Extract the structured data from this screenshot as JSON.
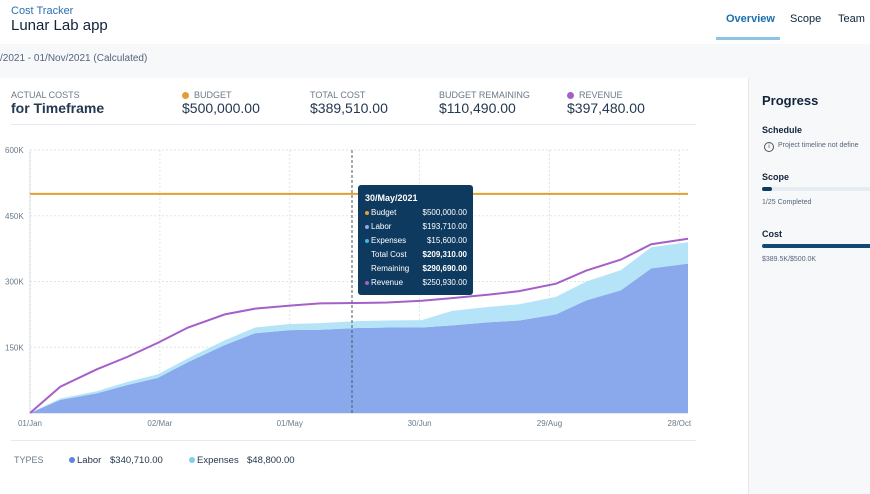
{
  "header": {
    "app": "Cost Tracker",
    "project": "Lunar Lab app",
    "tabs": [
      "Overview",
      "Scope",
      "Team"
    ]
  },
  "date_range": "/2021 - 01/Nov/2021 (Calculated)",
  "summary": {
    "label_top": "ACTUAL COSTS",
    "label_bottom": "for Timeframe",
    "items": [
      {
        "label": "BUDGET",
        "value": "$500,000.00"
      },
      {
        "label": "TOTAL COST",
        "value": "$389,510.00"
      },
      {
        "label": "BUDGET REMAINING",
        "value": "$110,490.00"
      },
      {
        "label": "REVENUE",
        "value": "$397,480.00"
      }
    ]
  },
  "chart_data": {
    "type": "area",
    "x": [
      "2021-01-01",
      "2021-01-15",
      "2021-02-01",
      "2021-02-15",
      "2021-03-01",
      "2021-03-15",
      "2021-04-01",
      "2021-04-15",
      "2021-05-01",
      "2021-05-15",
      "2021-06-01",
      "2021-06-15",
      "2021-07-01",
      "2021-07-15",
      "2021-08-01",
      "2021-08-15",
      "2021-09-01",
      "2021-09-15",
      "2021-10-01",
      "2021-10-15",
      "2021-11-01"
    ],
    "series": [
      {
        "name": "Labor",
        "color": "#8aa9ec",
        "values": [
          0,
          30000,
          45000,
          64000,
          80000,
          116000,
          155000,
          182000,
          189000,
          190000,
          194000,
          195000,
          195000,
          200000,
          207000,
          211000,
          225000,
          257000,
          280000,
          330000,
          340710
        ]
      },
      {
        "name": "Expenses",
        "color": "#b5e4f8",
        "values": [
          0,
          3000,
          5000,
          7000,
          8000,
          9000,
          11000,
          13000,
          14000,
          15000,
          15600,
          16000,
          17000,
          33000,
          35000,
          37000,
          40000,
          43000,
          46000,
          48000,
          48800
        ]
      },
      {
        "name": "Revenue",
        "color": "#a65fc8",
        "values": [
          0,
          60000,
          100000,
          128000,
          160000,
          195000,
          225000,
          238000,
          245000,
          250000,
          251000,
          252000,
          256000,
          262000,
          270000,
          278000,
          295000,
          325000,
          350000,
          385000,
          397480
        ]
      }
    ],
    "budget_line": {
      "color": "#e0a033",
      "value": 500000
    },
    "xlim": [
      "2021-01-01",
      "2021-11-01"
    ],
    "xticks": [
      {
        "value": "2021-01-01",
        "label": "01/Jan"
      },
      {
        "value": "2021-03-02",
        "label": "02/Mar"
      },
      {
        "value": "2021-05-01",
        "label": "01/May"
      },
      {
        "value": "2021-06-30",
        "label": "30/Jun"
      },
      {
        "value": "2021-08-29",
        "label": "29/Aug"
      },
      {
        "value": "2021-10-28",
        "label": "28/Oct"
      }
    ],
    "ylim": [
      0,
      600000
    ],
    "yticks": [
      {
        "value": 150000,
        "label": "150K"
      },
      {
        "value": 300000,
        "label": "300K"
      },
      {
        "value": 450000,
        "label": "450K"
      },
      {
        "value": 600000,
        "label": "600K"
      }
    ],
    "grid": true
  },
  "tooltip": {
    "date": "30/May/2021",
    "rows": [
      [
        "Budget",
        "$500,000.00"
      ],
      [
        "Labor",
        "$193,710.00"
      ],
      [
        "Expenses",
        "$15,600.00"
      ],
      [
        "Total Cost",
        "$209,310.00"
      ],
      [
        "Remaining",
        "$290,690.00"
      ],
      [
        "Revenue",
        "$250,930.00"
      ]
    ]
  },
  "legend": {
    "title": "TYPES",
    "items": [
      {
        "name": "Labor",
        "amount": "$340,710.00"
      },
      {
        "name": "Expenses",
        "amount": "$48,800.00"
      }
    ]
  },
  "sidebar": {
    "title": "Progress",
    "schedule": {
      "label": "Schedule",
      "note": "Project timeline not define"
    },
    "scope": {
      "label": "Scope",
      "note": "1/25 Completed"
    },
    "cost": {
      "label": "Cost",
      "note": "$389.5K/$500.0K"
    }
  }
}
